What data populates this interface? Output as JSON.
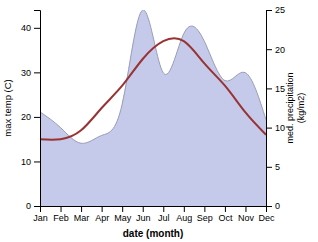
{
  "chart_data": {
    "type": "line",
    "categories": [
      "Jan",
      "Feb",
      "Mar",
      "Apr",
      "May",
      "Jun",
      "Jul",
      "Aug",
      "Sep",
      "Oct",
      "Nov",
      "Dec"
    ],
    "series": [
      {
        "type": "area",
        "axis": "y2",
        "color": "#c5caea",
        "values": [
          12,
          10,
          8,
          9,
          13,
          25,
          17,
          22,
          21,
          16,
          17,
          11
        ]
      },
      {
        "type": "line",
        "color": "#993333",
        "values": [
          15,
          15,
          17,
          22,
          27,
          33,
          37,
          37,
          32,
          27,
          21,
          16
        ]
      }
    ],
    "xlabel": "date (month)",
    "ylabel": "max temp (C)",
    "y2label": "med. precipitation\n(kg/m2)",
    "ylim": [
      0,
      44
    ],
    "yticks": [
      0,
      10,
      20,
      30,
      40
    ],
    "y2lim": [
      0,
      25
    ],
    "y2ticks": [
      0,
      5,
      10,
      15,
      20,
      25
    ],
    "grid": false
  }
}
